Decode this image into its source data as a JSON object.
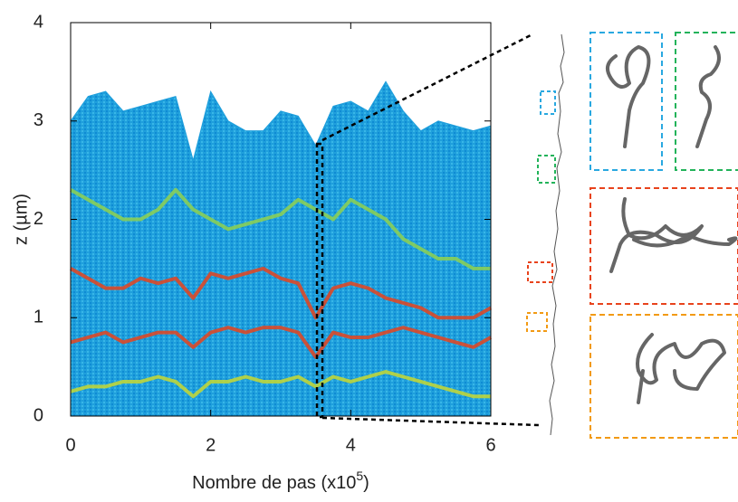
{
  "chart_data": {
    "type": "kymograph",
    "ylabel": "z (µm)",
    "xlabel": {
      "text": "Nombre de pas (x10",
      "sup": "5",
      "close": ")"
    },
    "xlim": [
      0,
      6
    ],
    "ylim": [
      0,
      4
    ],
    "xticks": [
      0,
      2,
      4,
      6
    ],
    "yticks": [
      0,
      1,
      2,
      3,
      4
    ],
    "x": [
      0,
      0.25,
      0.5,
      0.75,
      1,
      1.25,
      1.5,
      1.75,
      2,
      2.25,
      2.5,
      2.75,
      3,
      3.25,
      3.5,
      3.75,
      4,
      4.25,
      4.5,
      4.75,
      5,
      5.25,
      5.5,
      5.75,
      6
    ],
    "series": [
      {
        "color": "#1f9fdc",
        "fill": true,
        "values": [
          3.0,
          3.25,
          3.3,
          3.1,
          3.15,
          3.2,
          3.25,
          2.6,
          3.3,
          3.0,
          2.9,
          2.9,
          3.1,
          3.05,
          2.75,
          3.15,
          3.2,
          3.1,
          3.4,
          3.1,
          2.9,
          3.0,
          2.95,
          2.9,
          2.95
        ]
      },
      {
        "color": "#8fd14f",
        "values": [
          2.3,
          2.2,
          2.1,
          2.0,
          2.0,
          2.1,
          2.3,
          2.1,
          2.0,
          1.9,
          1.95,
          2.0,
          2.05,
          2.2,
          2.1,
          2.0,
          2.2,
          2.1,
          2.0,
          1.8,
          1.7,
          1.6,
          1.6,
          1.5,
          1.5
        ]
      },
      {
        "color": "#e8431c",
        "values": [
          1.5,
          1.4,
          1.3,
          1.3,
          1.4,
          1.35,
          1.4,
          1.2,
          1.45,
          1.4,
          1.45,
          1.5,
          1.4,
          1.35,
          1.0,
          1.3,
          1.35,
          1.3,
          1.2,
          1.15,
          1.1,
          1.0,
          1.0,
          1.0,
          1.1
        ]
      },
      {
        "color": "#e8431c",
        "values": [
          0.75,
          0.8,
          0.85,
          0.75,
          0.8,
          0.85,
          0.85,
          0.7,
          0.85,
          0.9,
          0.85,
          0.9,
          0.9,
          0.85,
          0.6,
          0.85,
          0.8,
          0.8,
          0.85,
          0.9,
          0.85,
          0.8,
          0.75,
          0.7,
          0.8
        ]
      },
      {
        "color": "#c8d830",
        "values": [
          0.25,
          0.3,
          0.3,
          0.35,
          0.35,
          0.4,
          0.35,
          0.2,
          0.35,
          0.35,
          0.4,
          0.35,
          0.35,
          0.4,
          0.3,
          0.4,
          0.35,
          0.4,
          0.45,
          0.4,
          0.35,
          0.3,
          0.25,
          0.2,
          0.2
        ]
      }
    ]
  }
}
